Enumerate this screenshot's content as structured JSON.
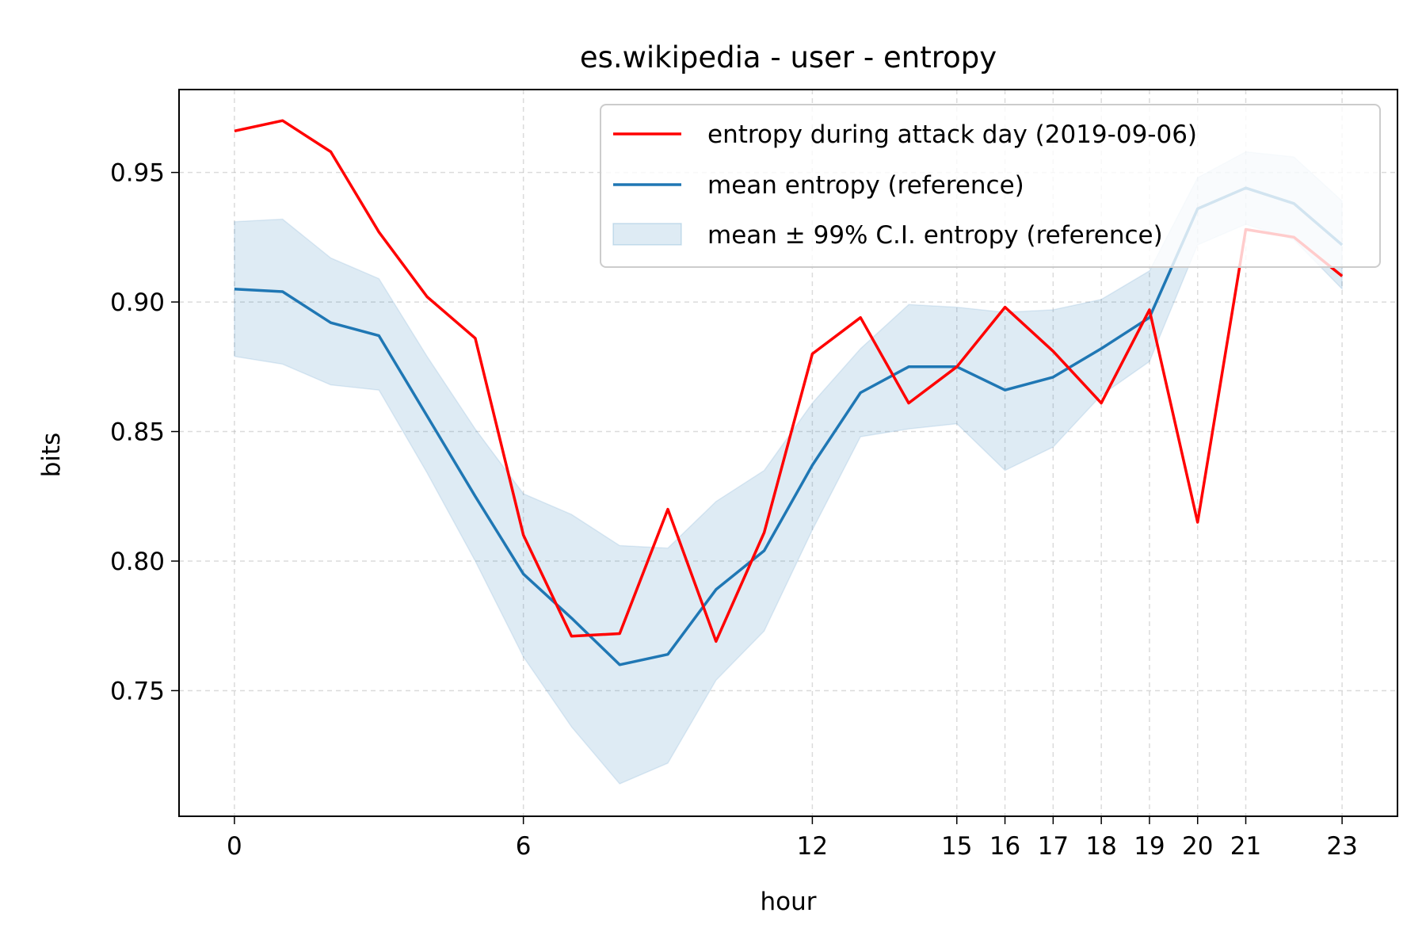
{
  "chart_data": {
    "type": "line",
    "title": "es.wikipedia - user - entropy",
    "xlabel": "hour",
    "ylabel": "bits",
    "xlim": [
      -1.15,
      24.15
    ],
    "ylim": [
      0.7015,
      0.982
    ],
    "x_ticks": [
      0,
      6,
      12,
      15,
      16,
      17,
      18,
      19,
      20,
      21,
      23
    ],
    "x_tick_labels": [
      "0",
      "6",
      "12",
      "15",
      "16",
      "17",
      "18",
      "19",
      "20",
      "21",
      "23"
    ],
    "y_ticks": [
      0.75,
      0.8,
      0.85,
      0.9,
      0.95
    ],
    "y_tick_labels": [
      "0.75",
      "0.80",
      "0.85",
      "0.90",
      "0.95"
    ],
    "grid": true,
    "legend_position": "top-right",
    "x": [
      0,
      1,
      2,
      3,
      4,
      5,
      6,
      7,
      8,
      9,
      10,
      11,
      12,
      13,
      14,
      15,
      16,
      17,
      18,
      19,
      20,
      21,
      22,
      23
    ],
    "series": [
      {
        "name": "entropy during attack day (2019-09-06)",
        "color": "#ff0000",
        "kind": "line",
        "values": [
          0.966,
          0.97,
          0.958,
          0.927,
          0.902,
          0.886,
          0.81,
          0.771,
          0.772,
          0.82,
          0.769,
          0.811,
          0.88,
          0.894,
          0.861,
          0.875,
          0.898,
          0.881,
          0.861,
          0.897,
          0.815,
          0.928,
          0.925,
          0.91
        ]
      },
      {
        "name": "mean entropy (reference)",
        "color": "#1f77b4",
        "kind": "line",
        "values": [
          0.905,
          0.904,
          0.892,
          0.887,
          0.856,
          0.825,
          0.795,
          0.778,
          0.76,
          0.764,
          0.789,
          0.804,
          0.837,
          0.865,
          0.875,
          0.875,
          0.866,
          0.871,
          0.882,
          0.894,
          0.936,
          0.944,
          0.938,
          0.922
        ]
      },
      {
        "name": "mean ± 99% C.I. entropy (reference)",
        "color": "#1f77b4",
        "kind": "band",
        "lower": [
          0.879,
          0.876,
          0.868,
          0.866,
          0.834,
          0.8,
          0.763,
          0.736,
          0.714,
          0.722,
          0.754,
          0.773,
          0.812,
          0.848,
          0.851,
          0.853,
          0.835,
          0.844,
          0.864,
          0.877,
          0.922,
          0.93,
          0.924,
          0.905
        ],
        "upper": [
          0.931,
          0.932,
          0.917,
          0.909,
          0.879,
          0.851,
          0.826,
          0.818,
          0.806,
          0.805,
          0.823,
          0.835,
          0.861,
          0.882,
          0.899,
          0.898,
          0.896,
          0.897,
          0.901,
          0.912,
          0.948,
          0.958,
          0.956,
          0.939
        ]
      }
    ]
  }
}
